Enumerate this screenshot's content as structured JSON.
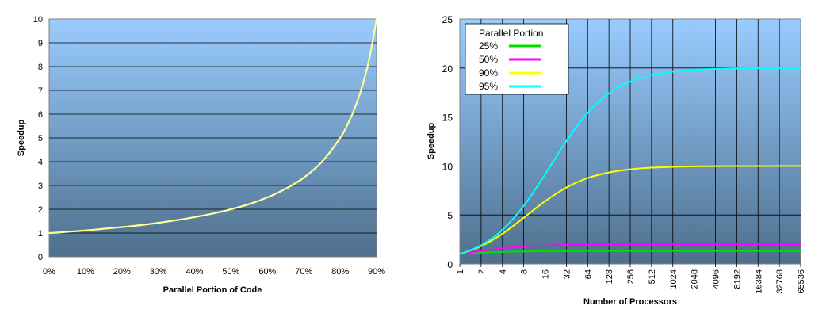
{
  "chart_data": [
    {
      "type": "line",
      "title": "",
      "xlabel": "Parallel Portion of Code",
      "ylabel": "Speedup",
      "x_ticks": [
        "0%",
        "10%",
        "20%",
        "30%",
        "40%",
        "50%",
        "60%",
        "70%",
        "80%",
        "90%"
      ],
      "y_ticks": [
        "0",
        "1",
        "2",
        "3",
        "4",
        "5",
        "6",
        "7",
        "8",
        "9",
        "10"
      ],
      "xlim": [
        0,
        90
      ],
      "ylim": [
        0,
        10
      ],
      "grid": true,
      "series": [
        {
          "color": "#ffff99",
          "x": [
            0,
            5,
            10,
            15,
            20,
            25,
            30,
            35,
            40,
            45,
            50,
            55,
            60,
            65,
            70,
            75,
            80,
            82,
            84,
            86,
            88,
            90
          ],
          "y": [
            1,
            1.05,
            1.11,
            1.18,
            1.25,
            1.33,
            1.43,
            1.54,
            1.67,
            1.82,
            2,
            2.22,
            2.5,
            2.86,
            3.33,
            4,
            5,
            5.56,
            6.25,
            7.14,
            8.33,
            10
          ]
        }
      ]
    },
    {
      "type": "line",
      "title": "",
      "xlabel": "Number of Processors",
      "ylabel": "Speedup",
      "categories": [
        "1",
        "2",
        "4",
        "8",
        "16",
        "32",
        "64",
        "128",
        "256",
        "512",
        "1024",
        "2048",
        "4096",
        "8192",
        "16384",
        "32768",
        "65536"
      ],
      "y_ticks": [
        "0",
        "5",
        "10",
        "15",
        "20",
        "25"
      ],
      "ylim": [
        0,
        25
      ],
      "grid": true,
      "legend": {
        "title": "Parallel Portion",
        "position": "top-left"
      },
      "series": [
        {
          "name": "25%",
          "color": "#00e000",
          "values": [
            1,
            1.14,
            1.23,
            1.28,
            1.31,
            1.32,
            1.33,
            1.33,
            1.33,
            1.33,
            1.33,
            1.33,
            1.33,
            1.33,
            1.33,
            1.33,
            1.33
          ]
        },
        {
          "name": "50%",
          "color": "#ff00ff",
          "values": [
            1,
            1.33,
            1.6,
            1.78,
            1.88,
            1.94,
            1.97,
            1.98,
            1.99,
            2,
            2,
            2,
            2,
            2,
            2,
            2,
            2
          ]
        },
        {
          "name": "90%",
          "color": "#ffff00",
          "values": [
            1,
            1.82,
            3.08,
            4.71,
            6.4,
            7.8,
            8.77,
            9.34,
            9.66,
            9.83,
            9.91,
            9.96,
            9.98,
            9.99,
            9.99,
            10,
            10
          ]
        },
        {
          "name": "95%",
          "color": "#00ffff",
          "values": [
            1,
            1.9,
            3.48,
            5.93,
            9.14,
            12.55,
            15.42,
            17.41,
            18.62,
            19.28,
            19.63,
            19.82,
            19.91,
            19.95,
            19.98,
            19.99,
            19.99
          ]
        }
      ]
    }
  ]
}
